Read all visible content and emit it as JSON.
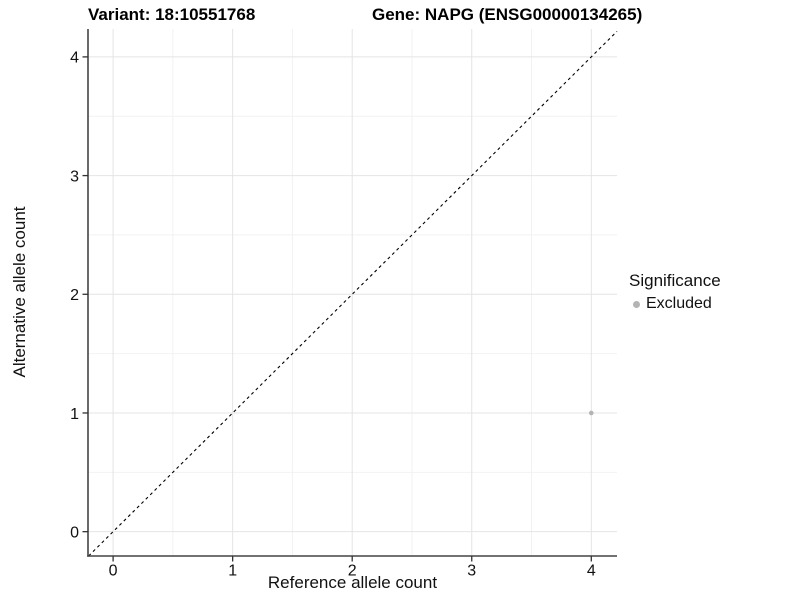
{
  "chart_data": {
    "type": "scatter",
    "title_left": "Variant: 18:10551768",
    "title_right": "Gene: NAPG (ENSG00000134265)",
    "xlabel": "Reference allele count",
    "ylabel": "Alternative allele count",
    "xlim": [
      -0.21,
      4.215
    ],
    "ylim": [
      -0.205,
      4.235
    ],
    "x_ticks": [
      0,
      1,
      2,
      3,
      4
    ],
    "y_ticks": [
      0,
      1,
      2,
      3,
      4
    ],
    "x_minor_ticks": [
      0.5,
      1.5,
      2.5,
      3.5
    ],
    "y_minor_ticks": [
      0.5,
      1.5,
      2.5,
      3.5
    ],
    "grid": "major and minor gridlines, light gray on white panel",
    "reference_line": {
      "kind": "identity y = x",
      "style": "dashed",
      "color": "#000000"
    },
    "series": [
      {
        "name": "Excluded",
        "color": "#b4b4b4",
        "points": [
          {
            "x": 4,
            "y": 1
          }
        ]
      }
    ],
    "legend": {
      "title": "Significance",
      "position": "right",
      "entries": [
        {
          "label": "Excluded",
          "color": "#b4b4b4"
        }
      ]
    }
  }
}
